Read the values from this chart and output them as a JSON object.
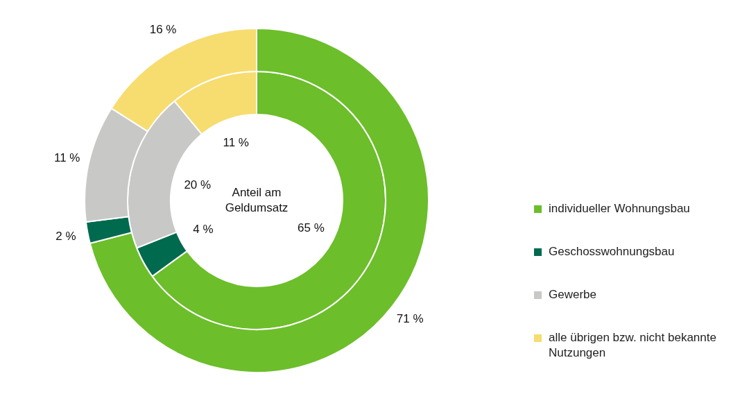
{
  "chart_data": {
    "type": "donut",
    "categories": [
      "individueller Wohnungsbau",
      "Geschosswohnungsbau",
      "Gewerbe",
      "alle übrigen bzw. nicht bekannte Nutzungen"
    ],
    "series": [
      {
        "values": [
          71,
          2,
          11,
          16
        ],
        "colors": [
          "#6cbe2a",
          "#006a4e",
          "#c8c8c6",
          "#f7dc6f"
        ],
        "value_labels": [
          "71 %",
          "2 %",
          "11 %",
          "16 %"
        ]
      },
      {
        "values": [
          65,
          4,
          20,
          11
        ],
        "colors": [
          "#6cbe2a",
          "#006a4e",
          "#c8c8c6",
          "#f7dc6f"
        ],
        "value_labels": [
          "65 %",
          "4 %",
          "20 %",
          "11 %"
        ]
      }
    ],
    "annotations": [
      "Anteil am Geldumsatz"
    ],
    "legend": "right"
  }
}
